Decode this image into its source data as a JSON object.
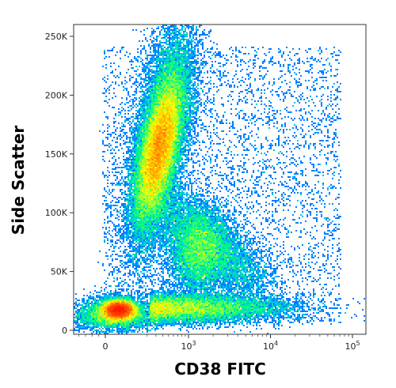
{
  "chart_data": {
    "type": "scatter",
    "subtype": "flow-cytometry density dot plot",
    "xlabel": "CD38 FITC",
    "ylabel": "Side Scatter",
    "x_scale": "biexponential (log above ~10^2.5)",
    "x_ticks": [
      {
        "value": 0,
        "label": "0"
      },
      {
        "value": 1000,
        "label": "10",
        "exp": "3"
      },
      {
        "value": 10000,
        "label": "10",
        "exp": "4"
      },
      {
        "value": 100000,
        "label": "10",
        "exp": "5"
      }
    ],
    "y_ticks": [
      {
        "value": 0,
        "label": "0"
      },
      {
        "value": 50000,
        "label": "50K"
      },
      {
        "value": 100000,
        "label": "100K"
      },
      {
        "value": 150000,
        "label": "150K"
      },
      {
        "value": 200000,
        "label": "200K"
      },
      {
        "value": 250000,
        "label": "250K"
      }
    ],
    "ylim": [
      -5000,
      262000
    ],
    "colormap": [
      "#0000ff",
      "#00b0ff",
      "#00ff80",
      "#ffff00",
      "#ff6000",
      "#ff0000"
    ],
    "grid": false,
    "populations": [
      {
        "id": "granulocytes",
        "cd38_center": 250,
        "ssc_center": 150000,
        "density": "highest (red core)"
      },
      {
        "id": "monocytes",
        "cd38_center": 1500,
        "ssc_center": 70000,
        "density": "medium (cyan core)"
      },
      {
        "id": "lymphocytes",
        "cd38_center": 20,
        "ssc_center": 18000,
        "density": "high (red core, tail to 10^4)"
      }
    ]
  }
}
